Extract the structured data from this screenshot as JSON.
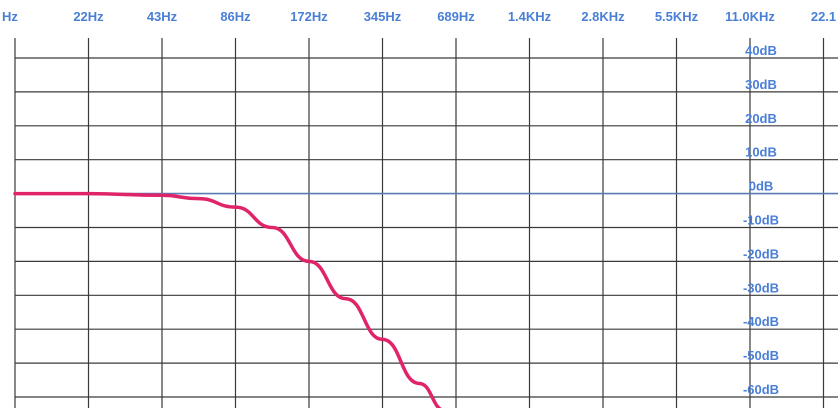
{
  "graph": {
    "frequency_labels": [
      "Hz",
      "22Hz",
      "43Hz",
      "86Hz",
      "172Hz",
      "345Hz",
      "689Hz",
      "1.4KHz",
      "2.8KHz",
      "5.5KHz",
      "11.0KHz",
      "22.1"
    ],
    "gain_labels": [
      "40dB",
      "30dB",
      "20dB",
      "10dB",
      "0dB",
      "-10dB",
      "-20dB",
      "-30dB",
      "-40dB",
      "-50dB",
      "-60dB"
    ],
    "colors": {
      "label": "#4a7fd6",
      "grid": "#3a3a3a",
      "zero_line": "#5b7bb5",
      "curve": "#e0246a",
      "background": "#ffffff"
    },
    "response_curve": {
      "description_free": true,
      "points": [
        {
          "freq": "Hz",
          "octave": 0,
          "db": 0
        },
        {
          "octave": 1,
          "db": 0
        },
        {
          "octave": 2,
          "db": -0.5
        },
        {
          "octave": 2.5,
          "db": -1.5
        },
        {
          "octave": 3,
          "db": -4
        },
        {
          "octave": 3.5,
          "db": -10
        },
        {
          "octave": 4,
          "db": -20
        },
        {
          "octave": 4.5,
          "db": -31
        },
        {
          "octave": 5,
          "db": -43
        },
        {
          "octave": 5.5,
          "db": -56
        },
        {
          "octave": 5.85,
          "db": -64
        }
      ]
    }
  }
}
